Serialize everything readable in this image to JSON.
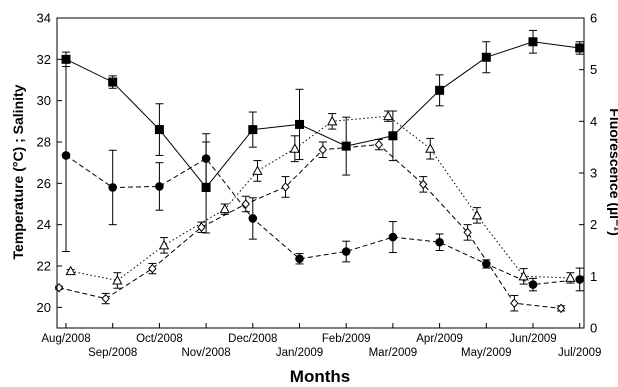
{
  "chart_data": {
    "type": "line",
    "xlabel": "Months",
    "ylabel_left": "Temperature (°C) ; Salinity",
    "ylabel_right": "Fluorescence (µl⁻¹)",
    "y_left_lim": [
      19,
      34
    ],
    "y_right_lim": [
      0,
      6
    ],
    "y_left_ticks": [
      "20",
      "22",
      "24",
      "26",
      "28",
      "30",
      "32",
      "34"
    ],
    "y_right_ticks": [
      "0",
      "1",
      "2",
      "3",
      "4",
      "5",
      "6"
    ],
    "x_ticks": [
      {
        "label": "Aug/2008",
        "x": 0
      },
      {
        "label": "Sep/2008",
        "x": 1
      },
      {
        "label": "Oct/2008",
        "x": 2
      },
      {
        "label": "Nov/2008",
        "x": 3
      },
      {
        "label": "Dec/2008",
        "x": 4
      },
      {
        "label": "Jan/2009",
        "x": 5
      },
      {
        "label": "Feb/2009",
        "x": 6
      },
      {
        "label": "Mar/2009",
        "x": 7
      },
      {
        "label": "Apr/2009",
        "x": 8
      },
      {
        "label": "May/2009",
        "x": 9
      },
      {
        "label": "Jun/2009",
        "x": 10
      },
      {
        "label": "Jul/2009",
        "x": 11
      }
    ],
    "grid": false,
    "series": [
      {
        "marker": "square",
        "line": "solid",
        "axis": "left",
        "color": "#000000",
        "points": [
          {
            "x": 0.0,
            "y": 32.0,
            "err": 0.35
          },
          {
            "x": 1.0,
            "y": 30.9,
            "err": 0.3
          },
          {
            "x": 2.0,
            "y": 28.6,
            "err": 1.25
          },
          {
            "x": 3.0,
            "y": 25.8,
            "err": 2.2
          },
          {
            "x": 4.0,
            "y": 28.6,
            "err": 0.85
          },
          {
            "x": 5.0,
            "y": 28.85,
            "err": 1.7
          },
          {
            "x": 6.0,
            "y": 27.8,
            "err": 1.4
          },
          {
            "x": 7.0,
            "y": 28.3,
            "err": 1.2
          },
          {
            "x": 8.0,
            "y": 30.5,
            "err": 0.75
          },
          {
            "x": 9.0,
            "y": 32.1,
            "err": 0.75
          },
          {
            "x": 10.0,
            "y": 32.85,
            "err": 0.55
          },
          {
            "x": 11.0,
            "y": 32.55,
            "err": 0.3
          }
        ]
      },
      {
        "marker": "circle",
        "line": "dashed",
        "axis": "left",
        "color": "#000000",
        "points": [
          {
            "x": 0.0,
            "y": 27.35,
            "err": 4.65
          },
          {
            "x": 1.0,
            "y": 25.8,
            "err": 1.8
          },
          {
            "x": 2.0,
            "y": 25.85,
            "err": 1.15
          },
          {
            "x": 3.0,
            "y": 27.2,
            "err": 1.2
          },
          {
            "x": 4.0,
            "y": 24.3,
            "err": 1.0
          },
          {
            "x": 5.0,
            "y": 22.35,
            "err": 0.25
          },
          {
            "x": 6.0,
            "y": 22.7,
            "err": 0.5
          },
          {
            "x": 7.0,
            "y": 23.4,
            "err": 0.75
          },
          {
            "x": 8.0,
            "y": 23.15,
            "err": 0.4
          },
          {
            "x": 9.0,
            "y": 22.1,
            "err": 0.2
          },
          {
            "x": 10.0,
            "y": 21.1,
            "err": 0.3
          },
          {
            "x": 11.0,
            "y": 21.35,
            "err": 0.55
          }
        ]
      },
      {
        "marker": "triangle-open",
        "line": "dotted",
        "axis": "right",
        "color": "#000000",
        "points": [
          {
            "x": 0.1,
            "y": 1.1,
            "err": 0.03
          },
          {
            "x": 1.1,
            "y": 0.92,
            "err": 0.15
          },
          {
            "x": 2.1,
            "y": 1.6,
            "err": 0.15
          },
          {
            "x": 3.4,
            "y": 2.3,
            "err": 0.1
          },
          {
            "x": 4.1,
            "y": 3.04,
            "err": 0.2
          },
          {
            "x": 4.9,
            "y": 3.47,
            "err": 0.25
          },
          {
            "x": 5.7,
            "y": 4.0,
            "err": 0.15
          },
          {
            "x": 6.9,
            "y": 4.1,
            "err": 0.1
          },
          {
            "x": 7.8,
            "y": 3.47,
            "err": 0.2
          },
          {
            "x": 8.8,
            "y": 2.18,
            "err": 0.15
          },
          {
            "x": 9.8,
            "y": 1.0,
            "err": 0.15
          },
          {
            "x": 10.8,
            "y": 0.97,
            "err": 0.1
          }
        ]
      },
      {
        "marker": "diamond-open",
        "line": "dashed",
        "axis": "right",
        "color": "#000000",
        "points": [
          {
            "x": -0.15,
            "y": 0.78,
            "err": 0.03
          },
          {
            "x": 0.85,
            "y": 0.57,
            "err": 0.1
          },
          {
            "x": 1.85,
            "y": 1.15,
            "err": 0.1
          },
          {
            "x": 2.9,
            "y": 1.95,
            "err": 0.1
          },
          {
            "x": 3.85,
            "y": 2.4,
            "err": 0.15
          },
          {
            "x": 4.7,
            "y": 2.73,
            "err": 0.2
          },
          {
            "x": 5.5,
            "y": 3.45,
            "err": 0.15
          },
          {
            "x": 6.7,
            "y": 3.55,
            "err": 0.1
          },
          {
            "x": 7.65,
            "y": 2.78,
            "err": 0.15
          },
          {
            "x": 8.6,
            "y": 1.85,
            "err": 0.15
          },
          {
            "x": 9.6,
            "y": 0.48,
            "err": 0.15
          },
          {
            "x": 10.6,
            "y": 0.38,
            "err": 0.05
          }
        ]
      }
    ]
  }
}
